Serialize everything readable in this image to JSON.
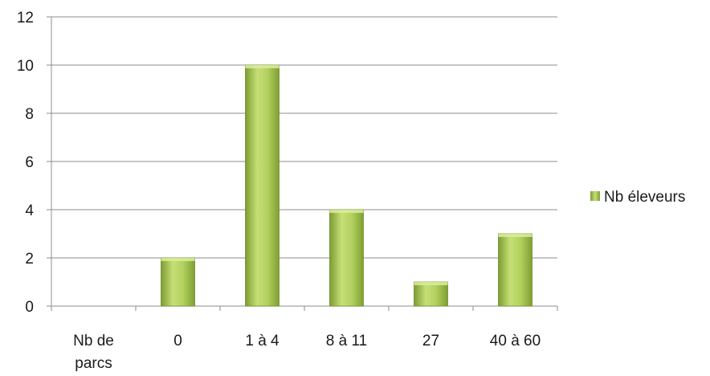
{
  "chart_data": {
    "type": "bar",
    "categories": [
      [
        "Nb de",
        "parcs"
      ],
      [
        "0"
      ],
      [
        "1 à 4"
      ],
      [
        "8 à 11"
      ],
      [
        "27"
      ],
      [
        "40 à 60"
      ]
    ],
    "series": [
      {
        "name": "Nb éleveurs",
        "values": [
          0,
          2,
          10,
          4,
          1,
          3
        ]
      }
    ],
    "ylim": [
      0,
      12
    ],
    "yticks": [
      0,
      2,
      4,
      6,
      8,
      10,
      12
    ],
    "grid": true,
    "legend": "right",
    "colors": {
      "bar_light": "#c9e27a",
      "bar_mid": "#9dc049",
      "bar_dark": "#6f8f2a",
      "grid": "#8c8c8c",
      "axis": "#8c8c8c"
    }
  }
}
